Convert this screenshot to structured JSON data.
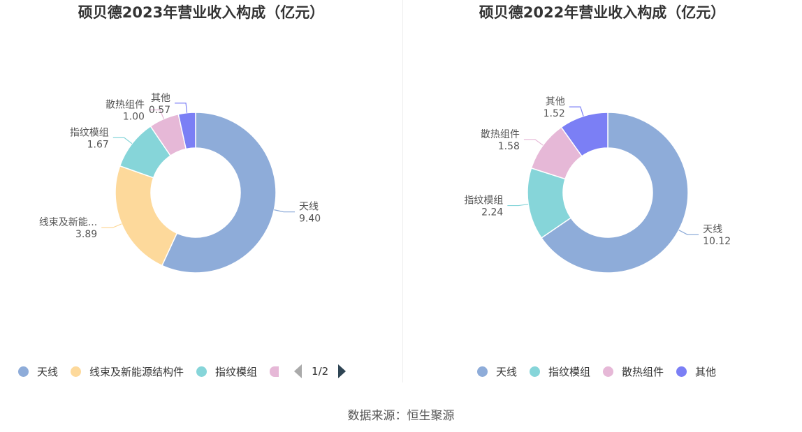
{
  "charts": [
    {
      "title": "硕贝德2023年营业收入构成（亿元）",
      "legend": {
        "items": [
          {
            "name": "天线",
            "color": "#8eacd9"
          },
          {
            "name": "线束及新能源结构件",
            "color": "#fdd99b"
          },
          {
            "name": "指纹模组",
            "color": "#86d5d9"
          },
          {
            "name": "",
            "color": "#e6b8d7"
          }
        ],
        "pager": "1/2"
      }
    },
    {
      "title": "硕贝德2022年营业收入构成（亿元）",
      "legend": {
        "items": [
          {
            "name": "天线",
            "color": "#8eacd9"
          },
          {
            "name": "指纹模组",
            "color": "#86d5d9"
          },
          {
            "name": "散热组件",
            "color": "#e6b8d7"
          },
          {
            "name": "其他",
            "color": "#7b7ff5"
          }
        ]
      }
    }
  ],
  "source": "数据来源：恒生聚源",
  "chart_data": [
    {
      "type": "pie",
      "title": "硕贝德2023年营业收入构成（亿元）",
      "donut": true,
      "legend_position": "bottom",
      "slices": [
        {
          "name": "天线",
          "label": "天线",
          "value": 9.4,
          "value_text": "9.40",
          "color": "#8eacd9"
        },
        {
          "name": "线束及新能源结构件",
          "label": "线束及新能...",
          "value": 3.89,
          "value_text": "3.89",
          "color": "#fdd99b"
        },
        {
          "name": "指纹模组",
          "label": "指纹模组",
          "value": 1.67,
          "value_text": "1.67",
          "color": "#86d5d9"
        },
        {
          "name": "散热组件",
          "label": "散热组件",
          "value": 1.0,
          "value_text": "1.00",
          "color": "#e6b8d7"
        },
        {
          "name": "其他",
          "label": "其他",
          "value": 0.57,
          "value_text": "0.57",
          "color": "#7b7ff5"
        }
      ]
    },
    {
      "type": "pie",
      "title": "硕贝德2022年营业收入构成（亿元）",
      "donut": true,
      "legend_position": "bottom",
      "slices": [
        {
          "name": "天线",
          "label": "天线",
          "value": 10.12,
          "value_text": "10.12",
          "color": "#8eacd9"
        },
        {
          "name": "指纹模组",
          "label": "指纹模组",
          "value": 2.24,
          "value_text": "2.24",
          "color": "#86d5d9"
        },
        {
          "name": "散热组件",
          "label": "散热组件",
          "value": 1.58,
          "value_text": "1.58",
          "color": "#e6b8d7"
        },
        {
          "name": "其他",
          "label": "其他",
          "value": 1.52,
          "value_text": "1.52",
          "color": "#7b7ff5"
        }
      ]
    }
  ]
}
